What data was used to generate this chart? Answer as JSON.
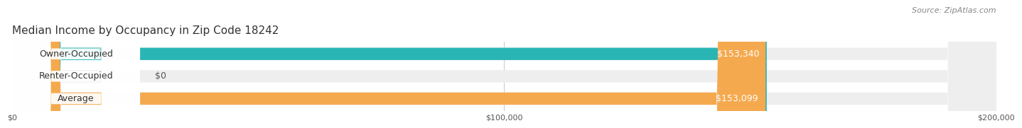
{
  "title": "Median Income by Occupancy in Zip Code 18242",
  "source": "Source: ZipAtlas.com",
  "categories": [
    "Owner-Occupied",
    "Renter-Occupied",
    "Average"
  ],
  "values": [
    153340,
    0,
    153099
  ],
  "bar_colors": [
    "#2ab5b5",
    "#c9a8d4",
    "#f5a94e"
  ],
  "value_labels": [
    "$153,340",
    "$0",
    "$153,099"
  ],
  "bar_bg_color": "#eeeeee",
  "xlim": [
    0,
    200000
  ],
  "xtick_labels": [
    "$0",
    "$100,000",
    "$200,000"
  ],
  "background_color": "#ffffff",
  "bar_height": 0.55,
  "title_fontsize": 11,
  "label_fontsize": 9,
  "value_fontsize": 9,
  "source_fontsize": 8
}
